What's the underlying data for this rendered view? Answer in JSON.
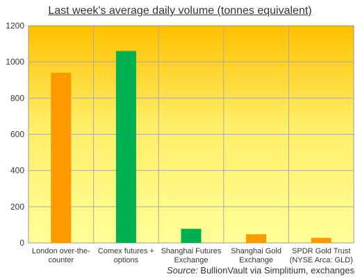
{
  "chart_data": {
    "type": "bar",
    "title": "Last week's average daily volume  (tonnes equivalent)",
    "categories": [
      [
        "London over-the-",
        "counter"
      ],
      [
        "Comex futures +",
        "options"
      ],
      [
        "Shanghai Futures",
        "Exchange"
      ],
      [
        "Shanghai Gold",
        "Exchange"
      ],
      [
        "SPDR Gold Trust",
        "(NYSE Arca: GLD)"
      ]
    ],
    "values": [
      940,
      1060,
      78,
      48,
      28
    ],
    "bar_colors": [
      "#FF9900",
      "#00B050",
      "#00B050",
      "#FF9900",
      "#FF9900"
    ],
    "ylim": [
      0,
      1200
    ],
    "yticks": [
      0,
      200,
      400,
      600,
      800,
      1000,
      1200
    ],
    "grid": true,
    "background_gradient": [
      "#FFC000",
      "#FFFF99"
    ],
    "xlabel": "",
    "ylabel": ""
  },
  "source": {
    "label": "Source:",
    "text": " BullionVault via Simplitium, exchanges"
  }
}
